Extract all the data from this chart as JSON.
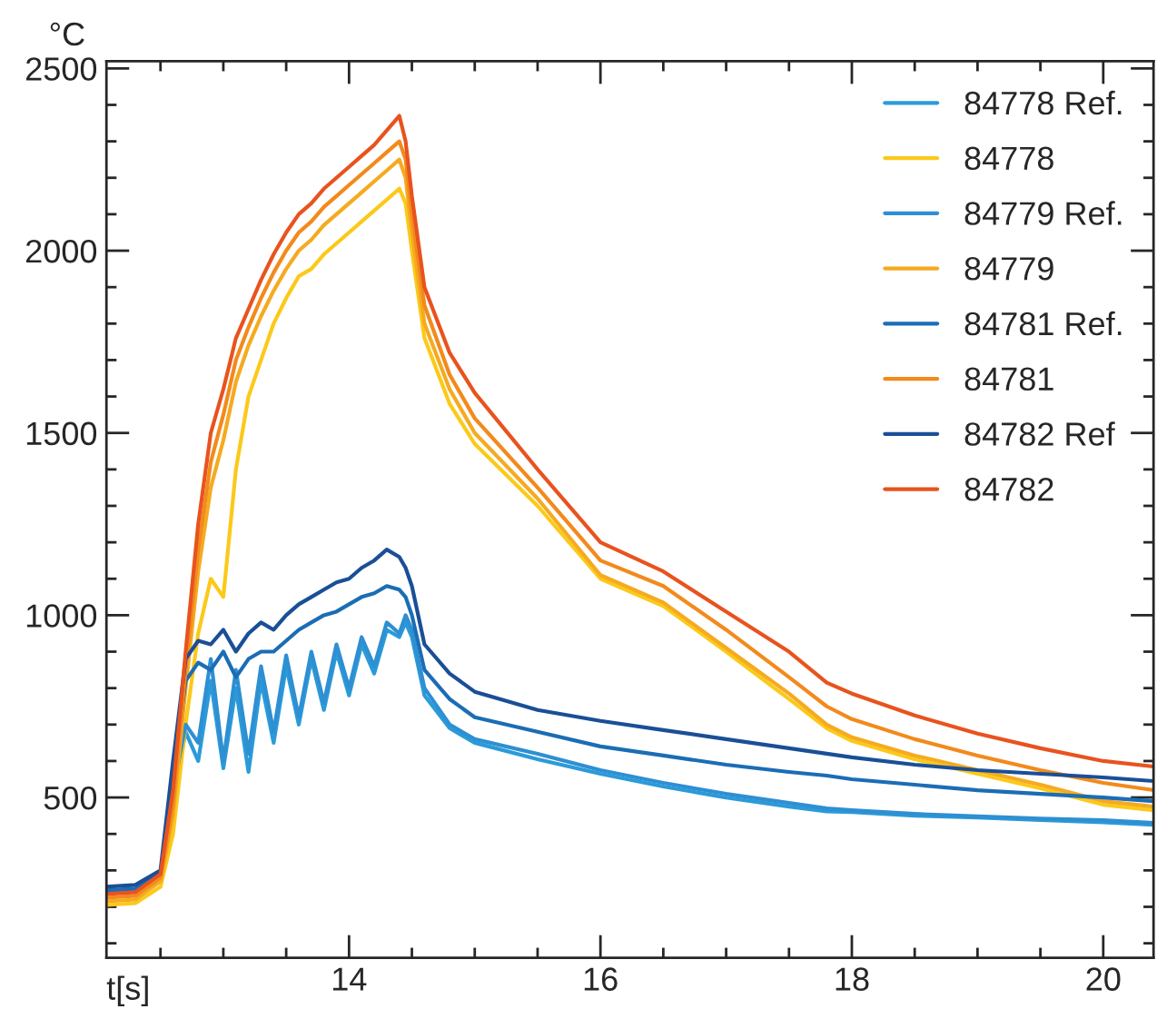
{
  "chart_data": {
    "type": "line",
    "xlabel": "t[s]",
    "ylabel": "°C",
    "x": [
      12.07,
      12.3,
      12.5,
      12.6,
      12.7,
      12.8,
      12.9,
      13.0,
      13.1,
      13.2,
      13.3,
      13.4,
      13.5,
      13.6,
      13.7,
      13.8,
      13.9,
      14.0,
      14.1,
      14.2,
      14.3,
      14.4,
      14.45,
      14.5,
      14.6,
      14.8,
      15.0,
      15.5,
      16.0,
      16.5,
      17.0,
      17.5,
      17.8,
      18.0,
      18.5,
      19.0,
      19.5,
      20.0,
      20.4
    ],
    "series": [
      {
        "name": "84778 Ref.",
        "color": "#2a9bd8",
        "values": [
          238,
          243,
          275,
          500,
          680,
          600,
          820,
          580,
          800,
          570,
          820,
          650,
          860,
          700,
          880,
          740,
          900,
          780,
          920,
          840,
          960,
          940,
          980,
          940,
          780,
          690,
          650,
          605,
          565,
          530,
          500,
          475,
          462,
          460,
          450,
          445,
          438,
          432,
          425
        ]
      },
      {
        "name": "84778",
        "color": "#fcc91a",
        "values": [
          205,
          210,
          255,
          400,
          700,
          950,
          1100,
          1050,
          1400,
          1600,
          1700,
          1800,
          1870,
          1930,
          1950,
          1990,
          2020,
          2050,
          2080,
          2110,
          2140,
          2170,
          2130,
          2000,
          1760,
          1580,
          1470,
          1300,
          1100,
          1025,
          900,
          770,
          690,
          655,
          605,
          565,
          525,
          480,
          465
        ]
      },
      {
        "name": "84779 Ref.",
        "color": "#2e8fd3",
        "values": [
          240,
          245,
          280,
          520,
          700,
          650,
          880,
          600,
          850,
          620,
          860,
          680,
          890,
          720,
          900,
          760,
          920,
          800,
          940,
          860,
          980,
          950,
          1000,
          960,
          800,
          700,
          660,
          620,
          575,
          540,
          510,
          485,
          470,
          465,
          455,
          448,
          442,
          438,
          430
        ]
      },
      {
        "name": "84779",
        "color": "#f5aa20",
        "values": [
          215,
          220,
          270,
          450,
          800,
          1120,
          1350,
          1480,
          1640,
          1740,
          1820,
          1890,
          1950,
          2000,
          2030,
          2070,
          2100,
          2130,
          2160,
          2190,
          2220,
          2250,
          2200,
          2050,
          1800,
          1620,
          1500,
          1320,
          1110,
          1035,
          910,
          785,
          700,
          665,
          615,
          575,
          535,
          490,
          475
        ]
      },
      {
        "name": "84781 Ref.",
        "color": "#1b6db5",
        "values": [
          245,
          250,
          290,
          560,
          820,
          870,
          850,
          900,
          830,
          880,
          900,
          900,
          930,
          960,
          980,
          1000,
          1010,
          1030,
          1050,
          1060,
          1080,
          1070,
          1050,
          1000,
          850,
          770,
          720,
          680,
          640,
          615,
          590,
          570,
          560,
          550,
          535,
          520,
          510,
          500,
          490
        ]
      },
      {
        "name": "84781",
        "color": "#f28a1c",
        "values": [
          225,
          230,
          280,
          480,
          850,
          1180,
          1420,
          1550,
          1700,
          1790,
          1870,
          1940,
          2000,
          2050,
          2080,
          2120,
          2150,
          2180,
          2210,
          2240,
          2270,
          2300,
          2250,
          2100,
          1850,
          1660,
          1540,
          1350,
          1150,
          1080,
          960,
          830,
          750,
          715,
          660,
          615,
          575,
          540,
          520
        ]
      },
      {
        "name": "84782 Ref",
        "color": "#1a4f97",
        "values": [
          255,
          260,
          300,
          600,
          880,
          930,
          920,
          960,
          900,
          950,
          980,
          960,
          1000,
          1030,
          1050,
          1070,
          1090,
          1100,
          1130,
          1150,
          1180,
          1160,
          1130,
          1080,
          920,
          840,
          790,
          740,
          710,
          685,
          660,
          635,
          620,
          610,
          590,
          575,
          565,
          555,
          545
        ]
      },
      {
        "name": "84782",
        "color": "#e8531e",
        "values": [
          235,
          240,
          290,
          520,
          900,
          1250,
          1500,
          1620,
          1760,
          1840,
          1920,
          1990,
          2050,
          2100,
          2130,
          2170,
          2200,
          2230,
          2260,
          2290,
          2330,
          2370,
          2300,
          2150,
          1900,
          1720,
          1610,
          1400,
          1200,
          1120,
          1010,
          900,
          815,
          785,
          725,
          675,
          635,
          600,
          585
        ]
      }
    ],
    "xlim": [
      12.07,
      20.4
    ],
    "xticks": [
      {
        "value": 12.5,
        "label": null
      },
      {
        "value": 13,
        "label": null
      },
      {
        "value": 13.5,
        "label": null
      },
      14,
      {
        "value": 14.5,
        "label": null
      },
      {
        "value": 15,
        "label": null
      },
      {
        "value": 15.5,
        "label": null
      },
      16,
      {
        "value": 16.5,
        "label": null
      },
      {
        "value": 17,
        "label": null
      },
      {
        "value": 17.5,
        "label": null
      },
      18,
      {
        "value": 18.5,
        "label": null
      },
      {
        "value": 19,
        "label": null
      },
      {
        "value": 19.5,
        "label": null
      },
      20
    ],
    "ylim": [
      60,
      2520
    ],
    "yticks": [
      {
        "value": 100,
        "label": null
      },
      {
        "value": 200,
        "label": null
      },
      {
        "value": 300,
        "label": null
      },
      {
        "value": 400,
        "label": null
      },
      500,
      {
        "value": 600,
        "label": null
      },
      {
        "value": 700,
        "label": null
      },
      {
        "value": 800,
        "label": null
      },
      {
        "value": 900,
        "label": null
      },
      1000,
      {
        "value": 1100,
        "label": null
      },
      {
        "value": 1200,
        "label": null
      },
      {
        "value": 1300,
        "label": null
      },
      {
        "value": 1400,
        "label": null
      },
      1500,
      {
        "value": 1600,
        "label": null
      },
      {
        "value": 1700,
        "label": null
      },
      {
        "value": 1800,
        "label": null
      },
      {
        "value": 1900,
        "label": null
      },
      2000,
      {
        "value": 2100,
        "label": null
      },
      {
        "value": 2200,
        "label": null
      },
      {
        "value": 2300,
        "label": null
      },
      {
        "value": 2400,
        "label": null
      },
      2500
    ],
    "grid": false,
    "legend": "top right",
    "line_style": "solid",
    "marker": "none"
  }
}
